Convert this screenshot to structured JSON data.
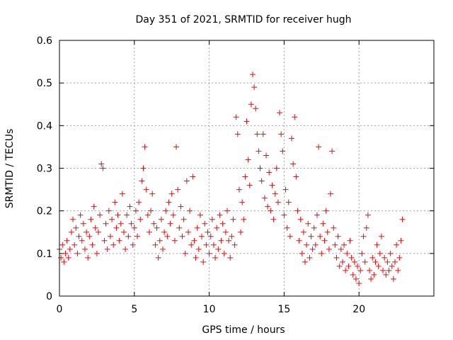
{
  "chart_data": {
    "type": "scatter",
    "title": "Day 351 of 2021, SRMTID for receiver hugh",
    "xlabel": "GPS time / hours",
    "ylabel": "SRMTID / TECUs",
    "xlim": [
      0,
      25
    ],
    "ylim": [
      0,
      0.6
    ],
    "x_ticks": [
      0,
      5,
      10,
      15,
      20
    ],
    "y_ticks": [
      0,
      0.1,
      0.2,
      0.3,
      0.4,
      0.5,
      0.6
    ],
    "x_tick_labels": [
      "0",
      "5",
      "10",
      "15",
      "20"
    ],
    "y_tick_labels": [
      "0",
      "0.1",
      "0.2",
      "0.3",
      "0.4",
      "0.5",
      "0.6"
    ],
    "grid": true,
    "marker": "+",
    "color": "#ff0000",
    "series": [
      {
        "name": "SRMTID",
        "points": [
          [
            0.0,
            0.11
          ],
          [
            0.1,
            0.09
          ],
          [
            0.2,
            0.12
          ],
          [
            0.3,
            0.08
          ],
          [
            0.4,
            0.1
          ],
          [
            0.5,
            0.13
          ],
          [
            0.6,
            0.09
          ],
          [
            0.7,
            0.11
          ],
          [
            0.8,
            0.15
          ],
          [
            0.9,
            0.18
          ],
          [
            1.0,
            0.12
          ],
          [
            1.1,
            0.16
          ],
          [
            1.2,
            0.1
          ],
          [
            1.3,
            0.14
          ],
          [
            1.4,
            0.19
          ],
          [
            1.5,
            0.13
          ],
          [
            1.6,
            0.17
          ],
          [
            1.7,
            0.11
          ],
          [
            1.8,
            0.15
          ],
          [
            1.9,
            0.09
          ],
          [
            2.0,
            0.14
          ],
          [
            2.1,
            0.18
          ],
          [
            2.2,
            0.12
          ],
          [
            2.3,
            0.21
          ],
          [
            2.4,
            0.16
          ],
          [
            2.5,
            0.1
          ],
          [
            2.6,
            0.15
          ],
          [
            2.7,
            0.19
          ],
          [
            2.8,
            0.31
          ],
          [
            2.9,
            0.3
          ],
          [
            3.0,
            0.13
          ],
          [
            3.1,
            0.17
          ],
          [
            3.2,
            0.11
          ],
          [
            3.3,
            0.2
          ],
          [
            3.4,
            0.14
          ],
          [
            3.5,
            0.18
          ],
          [
            3.6,
            0.12
          ],
          [
            3.7,
            0.22
          ],
          [
            3.8,
            0.16
          ],
          [
            3.9,
            0.19
          ],
          [
            4.0,
            0.13
          ],
          [
            4.1,
            0.17
          ],
          [
            4.2,
            0.24
          ],
          [
            4.3,
            0.15
          ],
          [
            4.4,
            0.11
          ],
          [
            4.5,
            0.19
          ],
          [
            4.6,
            0.14
          ],
          [
            4.7,
            0.21
          ],
          [
            4.8,
            0.17
          ],
          [
            4.9,
            0.12
          ],
          [
            5.0,
            0.16
          ],
          [
            5.1,
            0.2
          ],
          [
            5.2,
            0.14
          ],
          [
            5.3,
            0.22
          ],
          [
            5.4,
            0.18
          ],
          [
            5.5,
            0.27
          ],
          [
            5.6,
            0.3
          ],
          [
            5.7,
            0.35
          ],
          [
            5.8,
            0.25
          ],
          [
            5.9,
            0.19
          ],
          [
            6.0,
            0.15
          ],
          [
            6.1,
            0.2
          ],
          [
            6.2,
            0.24
          ],
          [
            6.3,
            0.17
          ],
          [
            6.4,
            0.12
          ],
          [
            6.5,
            0.16
          ],
          [
            6.6,
            0.09
          ],
          [
            6.7,
            0.13
          ],
          [
            6.8,
            0.18
          ],
          [
            6.9,
            0.11
          ],
          [
            7.0,
            0.15
          ],
          [
            7.1,
            0.2
          ],
          [
            7.2,
            0.14
          ],
          [
            7.3,
            0.22
          ],
          [
            7.4,
            0.17
          ],
          [
            7.5,
            0.24
          ],
          [
            7.6,
            0.19
          ],
          [
            7.7,
            0.13
          ],
          [
            7.8,
            0.35
          ],
          [
            7.9,
            0.25
          ],
          [
            8.0,
            0.16
          ],
          [
            8.1,
            0.21
          ],
          [
            8.2,
            0.14
          ],
          [
            8.3,
            0.18
          ],
          [
            8.4,
            0.1
          ],
          [
            8.5,
            0.27
          ],
          [
            8.6,
            0.15
          ],
          [
            8.7,
            0.2
          ],
          [
            8.8,
            0.12
          ],
          [
            8.9,
            0.28
          ],
          [
            9.0,
            0.13
          ],
          [
            9.1,
            0.09
          ],
          [
            9.2,
            0.16
          ],
          [
            9.3,
            0.11
          ],
          [
            9.4,
            0.19
          ],
          [
            9.5,
            0.14
          ],
          [
            9.6,
            0.08
          ],
          [
            9.7,
            0.17
          ],
          [
            9.8,
            0.12
          ],
          [
            9.9,
            0.15
          ],
          [
            10.0,
            0.1
          ],
          [
            10.1,
            0.14
          ],
          [
            10.2,
            0.18
          ],
          [
            10.3,
            0.12
          ],
          [
            10.4,
            0.09
          ],
          [
            10.5,
            0.16
          ],
          [
            10.6,
            0.11
          ],
          [
            10.7,
            0.19
          ],
          [
            10.8,
            0.13
          ],
          [
            10.9,
            0.17
          ],
          [
            11.0,
            0.1
          ],
          [
            11.1,
            0.15
          ],
          [
            11.2,
            0.2
          ],
          [
            11.3,
            0.13
          ],
          [
            11.4,
            0.09
          ],
          [
            11.5,
            0.14
          ],
          [
            11.6,
            0.18
          ],
          [
            11.7,
            0.12
          ],
          [
            11.8,
            0.42
          ],
          [
            11.9,
            0.38
          ],
          [
            12.0,
            0.25
          ],
          [
            12.1,
            0.15
          ],
          [
            12.2,
            0.22
          ],
          [
            12.3,
            0.18
          ],
          [
            12.4,
            0.28
          ],
          [
            12.5,
            0.41
          ],
          [
            12.6,
            0.32
          ],
          [
            12.7,
            0.26
          ],
          [
            12.8,
            0.45
          ],
          [
            12.9,
            0.52
          ],
          [
            13.0,
            0.49
          ],
          [
            13.1,
            0.44
          ],
          [
            13.2,
            0.38
          ],
          [
            13.3,
            0.34
          ],
          [
            13.4,
            0.3
          ],
          [
            13.5,
            0.27
          ],
          [
            13.6,
            0.38
          ],
          [
            13.7,
            0.23
          ],
          [
            13.8,
            0.33
          ],
          [
            13.9,
            0.21
          ],
          [
            14.0,
            0.29
          ],
          [
            14.1,
            0.2
          ],
          [
            14.2,
            0.26
          ],
          [
            14.3,
            0.18
          ],
          [
            14.4,
            0.24
          ],
          [
            14.5,
            0.3
          ],
          [
            14.6,
            0.22
          ],
          [
            14.7,
            0.43
          ],
          [
            14.8,
            0.38
          ],
          [
            14.9,
            0.34
          ],
          [
            15.0,
            0.19
          ],
          [
            15.1,
            0.25
          ],
          [
            15.2,
            0.16
          ],
          [
            15.3,
            0.22
          ],
          [
            15.4,
            0.14
          ],
          [
            15.5,
            0.37
          ],
          [
            15.6,
            0.31
          ],
          [
            15.7,
            0.42
          ],
          [
            15.8,
            0.28
          ],
          [
            15.9,
            0.2
          ],
          [
            16.0,
            0.13
          ],
          [
            16.1,
            0.18
          ],
          [
            16.2,
            0.1
          ],
          [
            16.3,
            0.15
          ],
          [
            16.4,
            0.08
          ],
          [
            16.5,
            0.12
          ],
          [
            16.6,
            0.17
          ],
          [
            16.7,
            0.09
          ],
          [
            16.8,
            0.14
          ],
          [
            16.9,
            0.11
          ],
          [
            17.0,
            0.16
          ],
          [
            17.1,
            0.12
          ],
          [
            17.2,
            0.19
          ],
          [
            17.3,
            0.35
          ],
          [
            17.4,
            0.14
          ],
          [
            17.5,
            0.1
          ],
          [
            17.6,
            0.17
          ],
          [
            17.7,
            0.13
          ],
          [
            17.8,
            0.2
          ],
          [
            17.9,
            0.15
          ],
          [
            18.0,
            0.11
          ],
          [
            18.1,
            0.24
          ],
          [
            18.2,
            0.34
          ],
          [
            18.3,
            0.16
          ],
          [
            18.4,
            0.12
          ],
          [
            18.5,
            0.09
          ],
          [
            18.6,
            0.14
          ],
          [
            18.7,
            0.07
          ],
          [
            18.8,
            0.11
          ],
          [
            18.9,
            0.08
          ],
          [
            19.0,
            0.12
          ],
          [
            19.1,
            0.06
          ],
          [
            19.2,
            0.1
          ],
          [
            19.3,
            0.07
          ],
          [
            19.4,
            0.13
          ],
          [
            19.5,
            0.09
          ],
          [
            19.6,
            0.05
          ],
          [
            19.7,
            0.08
          ],
          [
            19.8,
            0.04
          ],
          [
            19.9,
            0.07
          ],
          [
            20.0,
            0.03
          ],
          [
            20.1,
            0.06
          ],
          [
            20.2,
            0.1
          ],
          [
            20.3,
            0.14
          ],
          [
            20.4,
            0.08
          ],
          [
            20.5,
            0.16
          ],
          [
            20.6,
            0.19
          ],
          [
            20.7,
            0.06
          ],
          [
            20.8,
            0.04
          ],
          [
            20.9,
            0.09
          ],
          [
            21.0,
            0.05
          ],
          [
            21.1,
            0.08
          ],
          [
            21.2,
            0.12
          ],
          [
            21.3,
            0.07
          ],
          [
            21.4,
            0.1
          ],
          [
            21.5,
            0.14
          ],
          [
            21.6,
            0.06
          ],
          [
            21.7,
            0.09
          ],
          [
            21.8,
            0.05
          ],
          [
            21.9,
            0.08
          ],
          [
            22.0,
            0.06
          ],
          [
            22.1,
            0.1
          ],
          [
            22.2,
            0.07
          ],
          [
            22.3,
            0.04
          ],
          [
            22.4,
            0.08
          ],
          [
            22.5,
            0.12
          ],
          [
            22.6,
            0.06
          ],
          [
            22.7,
            0.09
          ],
          [
            22.8,
            0.13
          ],
          [
            22.9,
            0.18
          ]
        ]
      }
    ]
  }
}
